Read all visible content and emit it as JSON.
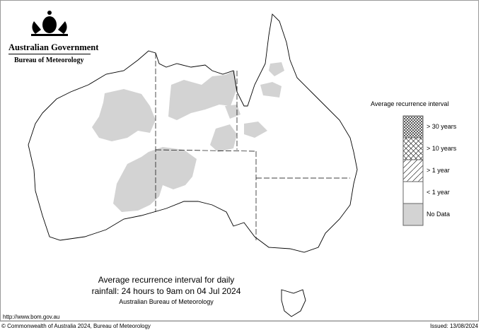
{
  "header": {
    "org": "Australian Government",
    "agency": "Bureau of Meteorology"
  },
  "title": {
    "line1": "Average recurrence interval for daily",
    "line2": "rainfall: 24 hours to 9am on 04 Jul 2024",
    "source": "Australian Bureau of Meteorology"
  },
  "legend": {
    "title": "Average recurrence interval",
    "items": [
      {
        "label": "> 30 years",
        "pattern": "dense-crosshatch"
      },
      {
        "label": "> 10 years",
        "pattern": "crosshatch"
      },
      {
        "label": "> 1 year",
        "pattern": "diagonal-hatch"
      },
      {
        "label": "< 1 year",
        "pattern": "white"
      },
      {
        "label": "No Data",
        "color": "#d3d3d3"
      }
    ]
  },
  "footer": {
    "url": "http://www.bom.gov.au",
    "copyright": "© Commonwealth of Australia 2024, Bureau of Meteorology",
    "issued": "Issued: 13/08/2024"
  },
  "colors": {
    "no_data": "#d3d3d3",
    "outline": "#000000"
  }
}
